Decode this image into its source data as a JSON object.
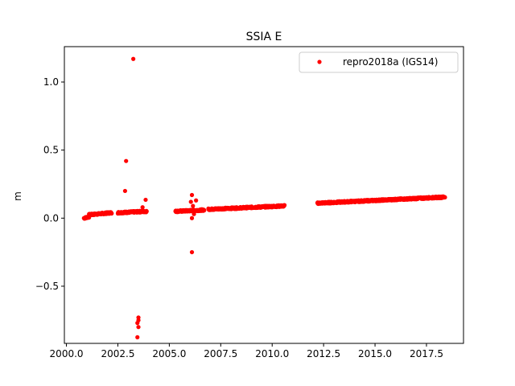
{
  "chart_data": {
    "type": "scatter",
    "title": "SSIA E",
    "xlabel": "",
    "ylabel": "m",
    "xlim": [
      1999.9,
      2019.3
    ],
    "ylim": [
      -0.92,
      1.26
    ],
    "grid": false,
    "legend_position": "top-right",
    "x_ticks": [
      2000.0,
      2002.5,
      2005.0,
      2007.5,
      2010.0,
      2012.5,
      2015.0,
      2017.5
    ],
    "x_tick_labels": [
      "2000.0",
      "2002.5",
      "2005.0",
      "2007.5",
      "2010.0",
      "2012.5",
      "2015.0",
      "2017.5"
    ],
    "y_ticks": [
      -0.5,
      0.0,
      0.5,
      1.0
    ],
    "y_tick_labels": [
      "−0.5",
      "0.0",
      "0.5",
      "1.0"
    ],
    "series": [
      {
        "name": "repro2018a (IGS14)",
        "color": "#ff0000",
        "marker": "circle",
        "segments": [
          {
            "x_start": 2000.85,
            "x_end": 2001.1,
            "y_start": 0.0,
            "y_end": 0.01
          },
          {
            "x_start": 2001.1,
            "x_end": 2002.2,
            "y_start": 0.025,
            "y_end": 0.04
          },
          {
            "x_start": 2002.5,
            "x_end": 2003.9,
            "y_start": 0.04,
            "y_end": 0.05
          },
          {
            "x_start": 2005.3,
            "x_end": 2006.7,
            "y_start": 0.05,
            "y_end": 0.06
          },
          {
            "x_start": 2006.9,
            "x_end": 2010.6,
            "y_start": 0.065,
            "y_end": 0.09
          },
          {
            "x_start": 2012.2,
            "x_end": 2018.4,
            "y_start": 0.11,
            "y_end": 0.155
          }
        ],
        "outliers": [
          {
            "x": 2003.25,
            "y": 1.17
          },
          {
            "x": 2002.9,
            "y": 0.42
          },
          {
            "x": 2002.85,
            "y": 0.2
          },
          {
            "x": 2003.7,
            "y": 0.08
          },
          {
            "x": 2003.85,
            "y": 0.135
          },
          {
            "x": 2003.5,
            "y": -0.73
          },
          {
            "x": 2003.5,
            "y": -0.75
          },
          {
            "x": 2003.45,
            "y": -0.77
          },
          {
            "x": 2003.5,
            "y": -0.8
          },
          {
            "x": 2003.45,
            "y": -0.875
          },
          {
            "x": 2006.1,
            "y": 0.17
          },
          {
            "x": 2006.3,
            "y": 0.13
          },
          {
            "x": 2006.05,
            "y": 0.12
          },
          {
            "x": 2006.15,
            "y": 0.09
          },
          {
            "x": 2006.2,
            "y": 0.03
          },
          {
            "x": 2006.1,
            "y": 0.0
          },
          {
            "x": 2006.1,
            "y": -0.25
          }
        ]
      }
    ]
  }
}
